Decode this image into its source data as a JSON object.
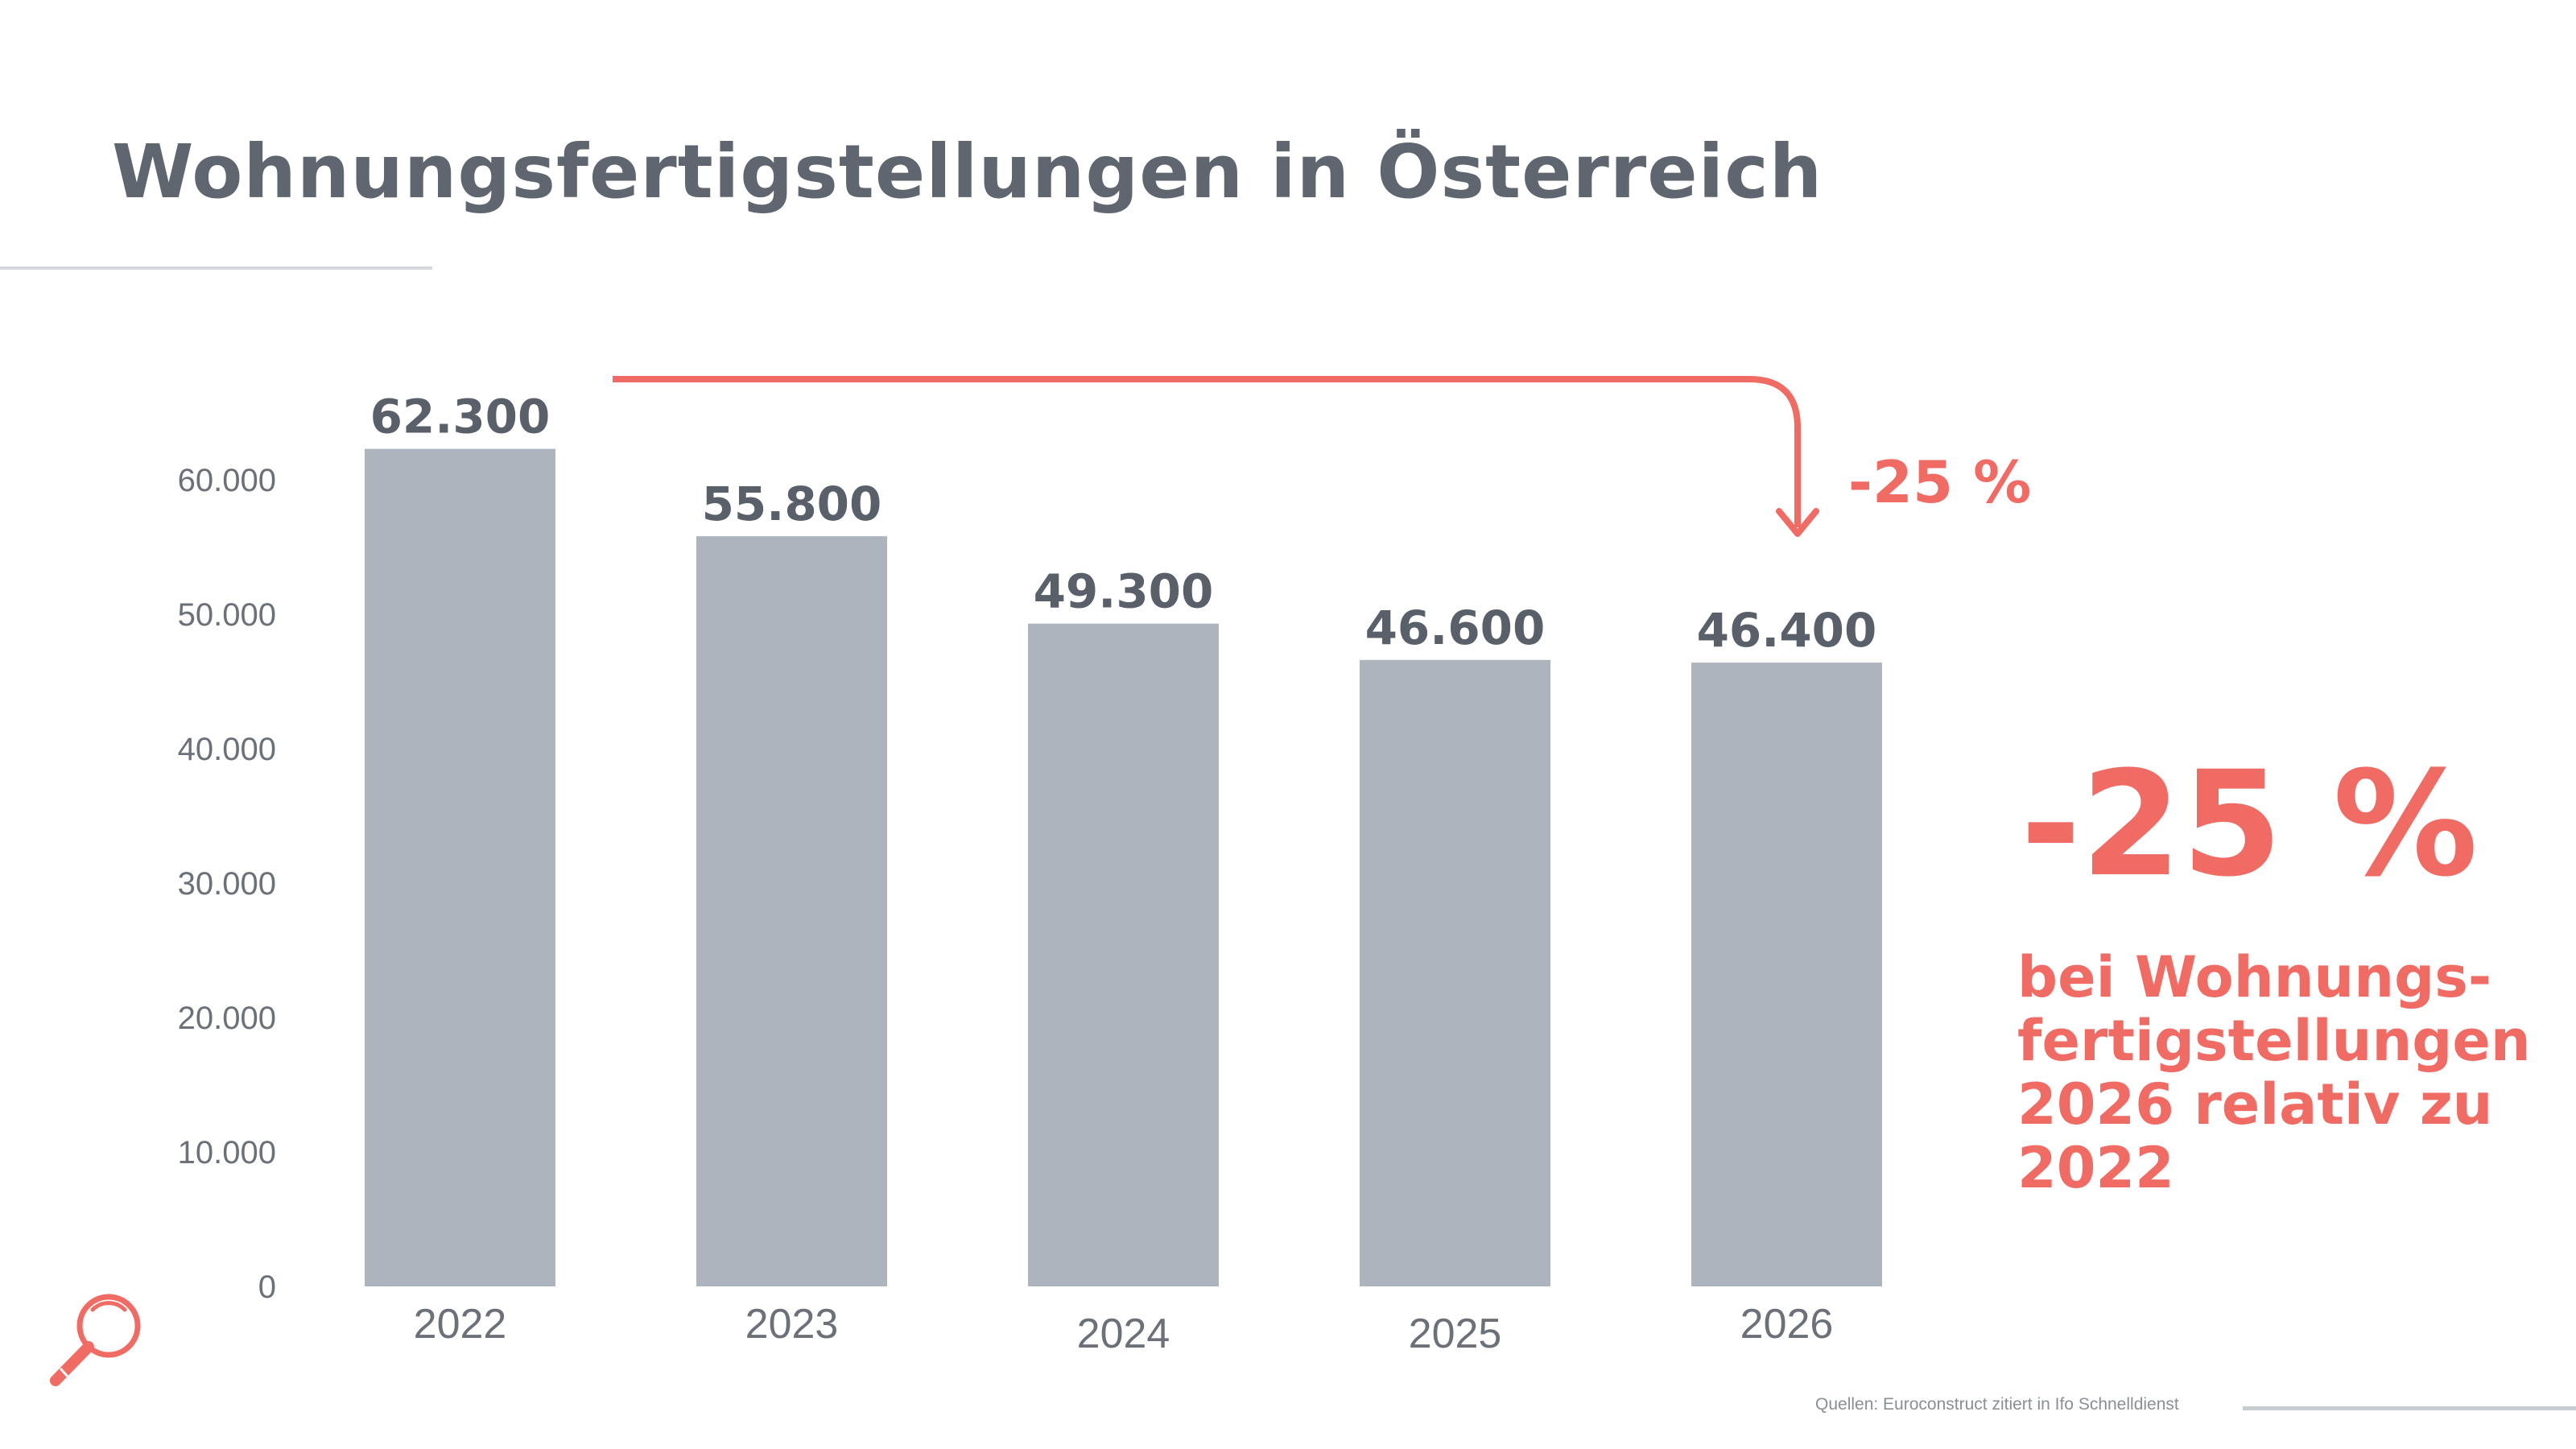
{
  "title": "Wohnungsfertigstellungen in Österreich",
  "chart_data": {
    "type": "bar",
    "title": "Wohnungsfertigstellungen in Österreich",
    "categories": [
      "2022",
      "2023",
      "2024",
      "2025",
      "2026"
    ],
    "values": [
      62300,
      55800,
      49300,
      46600,
      46400
    ],
    "value_labels": [
      "62.300",
      "55.800",
      "49.300",
      "46.600",
      "46.400"
    ],
    "ylim": [
      0,
      60000
    ],
    "yticks": [
      0,
      10000,
      20000,
      30000,
      40000,
      50000,
      60000
    ],
    "ytick_labels": [
      "0",
      "10.000",
      "20.000",
      "30.000",
      "40.000",
      "50.000",
      "60.000"
    ],
    "xlabel": "",
    "ylabel": "",
    "grid": false,
    "bar_color": "#adb4bd",
    "annotation": {
      "from": "2022",
      "to": "2026",
      "label": "-25 %"
    }
  },
  "highlight": {
    "value": "-25 %",
    "lines": [
      "bei Wohnungs-",
      "fertigstellungen",
      "2026 relativ zu",
      "2022"
    ]
  },
  "source": "Quellen: Euroconstruct zitiert in Ifo Schnelldienst",
  "colors": {
    "accent": "#ef6b63",
    "text": "#5f6670",
    "bar": "#adb4bd"
  },
  "icon": "magnifier-icon"
}
